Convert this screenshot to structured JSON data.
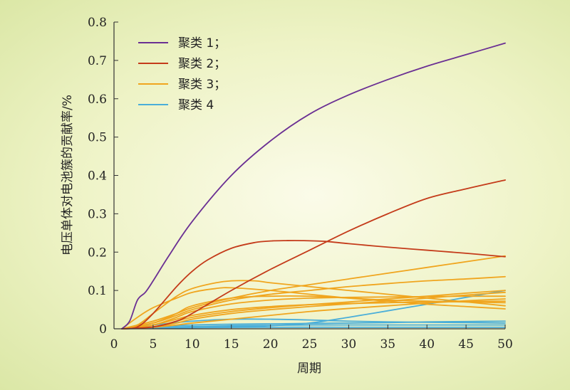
{
  "chart_data": {
    "type": "line",
    "title": "",
    "xlabel": "周期",
    "ylabel": "电压单体对电池簇的贡献率/%",
    "xlim": [
      0,
      50
    ],
    "ylim": [
      0,
      0.8
    ],
    "xticks": [
      0,
      5,
      10,
      15,
      20,
      25,
      30,
      35,
      40,
      45,
      50
    ],
    "xtick_labels": [
      "0",
      "5",
      "10",
      "15",
      "20",
      "25",
      "30",
      "35",
      "40",
      "45",
      "50"
    ],
    "yticks": [
      0,
      0.1,
      0.2,
      0.3,
      0.4,
      0.5,
      0.6,
      0.7,
      0.8
    ],
    "ytick_labels": [
      "0",
      "0.1",
      "0.2",
      "0.3",
      "0.4",
      "0.5",
      "0.6",
      "0.7",
      "0.8"
    ],
    "grid": false,
    "legend_position": "top-left",
    "legend": [
      {
        "label": "聚类 1；",
        "color": "#6a2f93"
      },
      {
        "label": "聚类 2；",
        "color": "#c43b1a"
      },
      {
        "label": "聚类 3；",
        "color": "#f0a51e"
      },
      {
        "label": "聚类 4",
        "color": "#4aaed9"
      }
    ],
    "series": [
      {
        "cluster": 1,
        "color": "#6a2f93",
        "x": [
          1,
          2,
          3,
          4,
          5,
          7,
          10,
          15,
          20,
          25,
          30,
          35,
          40,
          45,
          50
        ],
        "y": [
          0,
          0.02,
          0.075,
          0.095,
          0.125,
          0.19,
          0.28,
          0.4,
          0.49,
          0.56,
          0.61,
          0.65,
          0.685,
          0.715,
          0.745
        ]
      },
      {
        "cluster": 2,
        "color": "#c43b1a",
        "x": [
          1,
          3,
          5,
          8,
          10,
          12,
          15,
          18,
          20,
          22,
          24,
          27,
          30,
          35,
          40,
          45,
          50
        ],
        "y": [
          0,
          0.005,
          0.04,
          0.11,
          0.15,
          0.18,
          0.21,
          0.225,
          0.229,
          0.23,
          0.23,
          0.228,
          0.222,
          0.213,
          0.205,
          0.197,
          0.188
        ]
      },
      {
        "cluster": 2,
        "color": "#c43b1a",
        "x": [
          1,
          5,
          8,
          10,
          15,
          20,
          25,
          30,
          35,
          40,
          45,
          50
        ],
        "y": [
          0,
          0.005,
          0.02,
          0.04,
          0.1,
          0.155,
          0.205,
          0.255,
          0.3,
          0.34,
          0.365,
          0.388
        ]
      },
      {
        "cluster": 3,
        "color": "#f0a51e",
        "x": [
          1,
          3,
          5,
          8,
          10,
          13,
          15,
          18,
          20,
          25,
          30,
          35,
          40,
          45,
          50
        ],
        "y": [
          0,
          0.01,
          0.04,
          0.085,
          0.105,
          0.12,
          0.125,
          0.125,
          0.12,
          0.11,
          0.1,
          0.09,
          0.08,
          0.07,
          0.06
        ]
      },
      {
        "cluster": 3,
        "color": "#f0a51e",
        "x": [
          1,
          3,
          5,
          8,
          10,
          13,
          15,
          20,
          25,
          30,
          35,
          40,
          45,
          50
        ],
        "y": [
          0,
          0.03,
          0.055,
          0.08,
          0.095,
          0.105,
          0.107,
          0.1,
          0.09,
          0.08,
          0.072,
          0.064,
          0.058,
          0.052
        ]
      },
      {
        "cluster": 3,
        "color": "#f0a51e",
        "x": [
          1,
          5,
          8,
          10,
          15,
          20,
          25,
          30,
          35,
          40,
          45,
          50
        ],
        "y": [
          0,
          0.02,
          0.04,
          0.055,
          0.08,
          0.1,
          0.115,
          0.13,
          0.145,
          0.16,
          0.175,
          0.19
        ]
      },
      {
        "cluster": 3,
        "color": "#f0a51e",
        "x": [
          1,
          5,
          8,
          10,
          15,
          20,
          25,
          30,
          35,
          40,
          45,
          50
        ],
        "y": [
          0,
          0.015,
          0.035,
          0.05,
          0.075,
          0.09,
          0.1,
          0.11,
          0.118,
          0.125,
          0.13,
          0.136
        ]
      },
      {
        "cluster": 3,
        "color": "#f0a51e",
        "x": [
          1,
          5,
          8,
          10,
          15,
          20,
          25,
          30,
          35,
          40,
          45,
          50
        ],
        "y": [
          0,
          0.01,
          0.03,
          0.045,
          0.065,
          0.075,
          0.08,
          0.082,
          0.083,
          0.084,
          0.085,
          0.085
        ]
      },
      {
        "cluster": 3,
        "color": "#f0a51e",
        "x": [
          1,
          5,
          8,
          10,
          15,
          20,
          25,
          30,
          35,
          40,
          45,
          50
        ],
        "y": [
          0,
          0.015,
          0.04,
          0.06,
          0.08,
          0.085,
          0.085,
          0.08,
          0.075,
          0.072,
          0.07,
          0.068
        ]
      },
      {
        "cluster": 3,
        "color": "#f0a51e",
        "x": [
          1,
          5,
          8,
          10,
          15,
          20,
          25,
          30,
          35,
          40,
          45,
          50
        ],
        "y": [
          0,
          0.005,
          0.02,
          0.03,
          0.045,
          0.055,
          0.063,
          0.07,
          0.078,
          0.085,
          0.093,
          0.1
        ]
      },
      {
        "cluster": 3,
        "color": "#f0a51e",
        "x": [
          1,
          5,
          8,
          10,
          15,
          20,
          25,
          30,
          35,
          40,
          45,
          50
        ],
        "y": [
          0,
          0.005,
          0.015,
          0.025,
          0.04,
          0.05,
          0.058,
          0.065,
          0.072,
          0.08,
          0.088,
          0.095
        ]
      },
      {
        "cluster": 3,
        "color": "#f0a51e",
        "x": [
          1,
          5,
          8,
          10,
          15,
          20,
          25,
          30,
          35,
          40,
          45,
          50
        ],
        "y": [
          0,
          0.004,
          0.01,
          0.015,
          0.025,
          0.035,
          0.045,
          0.053,
          0.06,
          0.067,
          0.073,
          0.078
        ]
      },
      {
        "cluster": 3,
        "color": "#f0a51e",
        "x": [
          1,
          5,
          8,
          10,
          15,
          20,
          25,
          30,
          35,
          40,
          45,
          50
        ],
        "y": [
          0,
          0.01,
          0.025,
          0.035,
          0.05,
          0.058,
          0.063,
          0.066,
          0.068,
          0.07,
          0.071,
          0.072
        ]
      },
      {
        "cluster": 4,
        "color": "#4aaed9",
        "x": [
          1,
          10,
          15,
          20,
          25,
          30,
          35,
          40,
          45,
          50
        ],
        "y": [
          0,
          0.003,
          0.005,
          0.008,
          0.015,
          0.03,
          0.047,
          0.064,
          0.082,
          0.1
        ]
      },
      {
        "cluster": 4,
        "color": "#4aaed9",
        "x": [
          1,
          5,
          10,
          15,
          20,
          25,
          30,
          35,
          40,
          45,
          50
        ],
        "y": [
          0,
          0.01,
          0.02,
          0.025,
          0.025,
          0.023,
          0.02,
          0.018,
          0.017,
          0.016,
          0.015
        ]
      },
      {
        "cluster": 4,
        "color": "#4aaed9",
        "x": [
          1,
          5,
          10,
          15,
          20,
          25,
          30,
          35,
          40,
          45,
          50
        ],
        "y": [
          0,
          0.005,
          0.01,
          0.012,
          0.013,
          0.014,
          0.015,
          0.016,
          0.018,
          0.019,
          0.02
        ]
      },
      {
        "cluster": 4,
        "color": "#4aaed9",
        "x": [
          1,
          5,
          10,
          15,
          20,
          25,
          30,
          35,
          40,
          45,
          50
        ],
        "y": [
          0,
          0.003,
          0.006,
          0.008,
          0.009,
          0.01,
          0.01,
          0.01,
          0.01,
          0.01,
          0.01
        ]
      },
      {
        "cluster": 4,
        "color": "#4aaed9",
        "x": [
          1,
          5,
          10,
          20,
          30,
          40,
          50
        ],
        "y": [
          0,
          0.002,
          0.003,
          0.004,
          0.004,
          0.004,
          0.004
        ]
      }
    ]
  }
}
